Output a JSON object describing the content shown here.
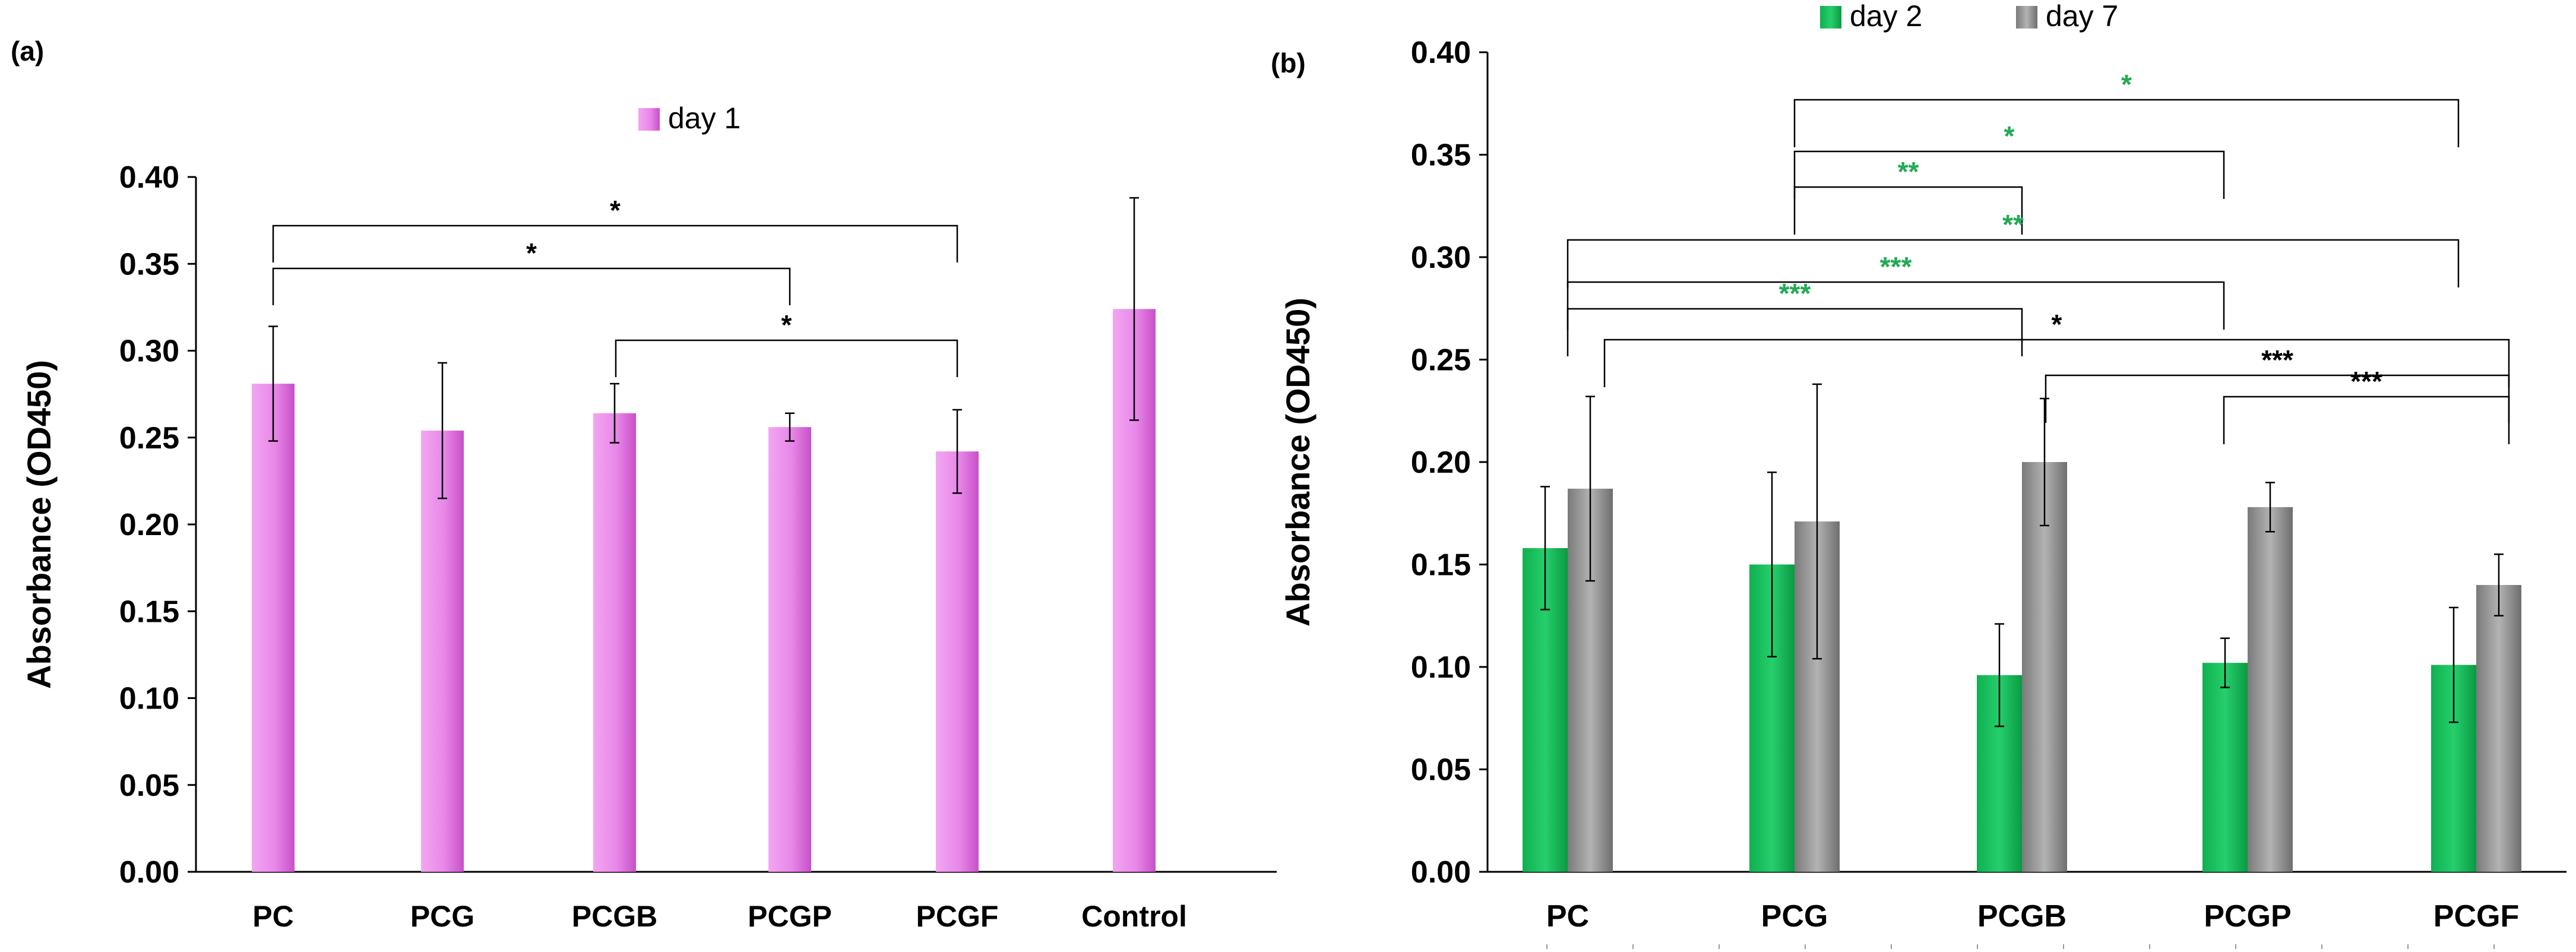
{
  "chart_data": [
    {
      "panel_label": "(a)",
      "type": "bar",
      "categories": [
        "PC",
        "PCG",
        "PCGB",
        "PCGP",
        "PCGF",
        "Control"
      ],
      "series": [
        {
          "name": "day 1",
          "values": [
            0.281,
            0.254,
            0.264,
            0.256,
            0.242,
            0.324
          ],
          "errors": [
            0.033,
            0.039,
            0.017,
            0.008,
            0.024,
            0.064
          ],
          "color": "#e070e0"
        }
      ],
      "xlabel": "",
      "ylabel": "Absorbance (OD450)",
      "ylim": [
        0,
        0.4
      ],
      "yticks": [
        "0.00",
        "0.05",
        "0.10",
        "0.15",
        "0.20",
        "0.25",
        "0.30",
        "0.35",
        "0.40"
      ],
      "legend_position": "top-center",
      "significance": [
        {
          "from": "PC",
          "to": "PCGF",
          "label": "*",
          "color": "#000000"
        },
        {
          "from": "PC",
          "to": "PCGP",
          "label": "*",
          "color": "#000000"
        },
        {
          "from": "PCGB",
          "to": "PCGF",
          "label": "*",
          "color": "#000000"
        }
      ]
    },
    {
      "panel_label": "(b)",
      "type": "bar",
      "categories": [
        "PC",
        "PCG",
        "PCGB",
        "PCGP",
        "PCGF"
      ],
      "series": [
        {
          "name": "day 2",
          "values": [
            0.158,
            0.15,
            0.096,
            0.102,
            0.101
          ],
          "errors": [
            0.03,
            0.045,
            0.025,
            0.012,
            0.028
          ],
          "color": "#1fbf5f"
        },
        {
          "name": "day 7",
          "values": [
            0.187,
            0.171,
            0.2,
            0.178,
            0.14
          ],
          "errors": [
            0.045,
            0.067,
            0.031,
            0.012,
            0.015
          ],
          "color": "#909090"
        }
      ],
      "xlabel": "",
      "ylabel": "Absorbance (OD450)",
      "ylim": [
        0,
        0.4
      ],
      "yticks": [
        "0.00",
        "0.05",
        "0.10",
        "0.15",
        "0.20",
        "0.25",
        "0.30",
        "0.35",
        "0.40"
      ],
      "legend_position": "top-center",
      "significance": [
        {
          "from": "PCG",
          "to": "PCGF",
          "label": "*",
          "color": "#22aa55"
        },
        {
          "from": "PCG",
          "to": "PCGP",
          "label": "*",
          "color": "#22aa55"
        },
        {
          "from": "PCG",
          "to": "PCGB",
          "label": "**",
          "color": "#22aa55"
        },
        {
          "from": "PC",
          "to": "PCGF",
          "label": "**",
          "color": "#22aa55"
        },
        {
          "from": "PC",
          "to": "PCGP",
          "label": "***",
          "color": "#22aa55"
        },
        {
          "from": "PC",
          "to": "PCGB",
          "label": "***",
          "color": "#22aa55"
        },
        {
          "from": "PC",
          "to": "PCGF",
          "label": "*",
          "color": "#000000"
        },
        {
          "from": "PCGB",
          "to": "PCGF",
          "label": "***",
          "color": "#000000"
        },
        {
          "from": "PCGP",
          "to": "PCGF",
          "label": "***",
          "color": "#000000"
        }
      ]
    }
  ]
}
